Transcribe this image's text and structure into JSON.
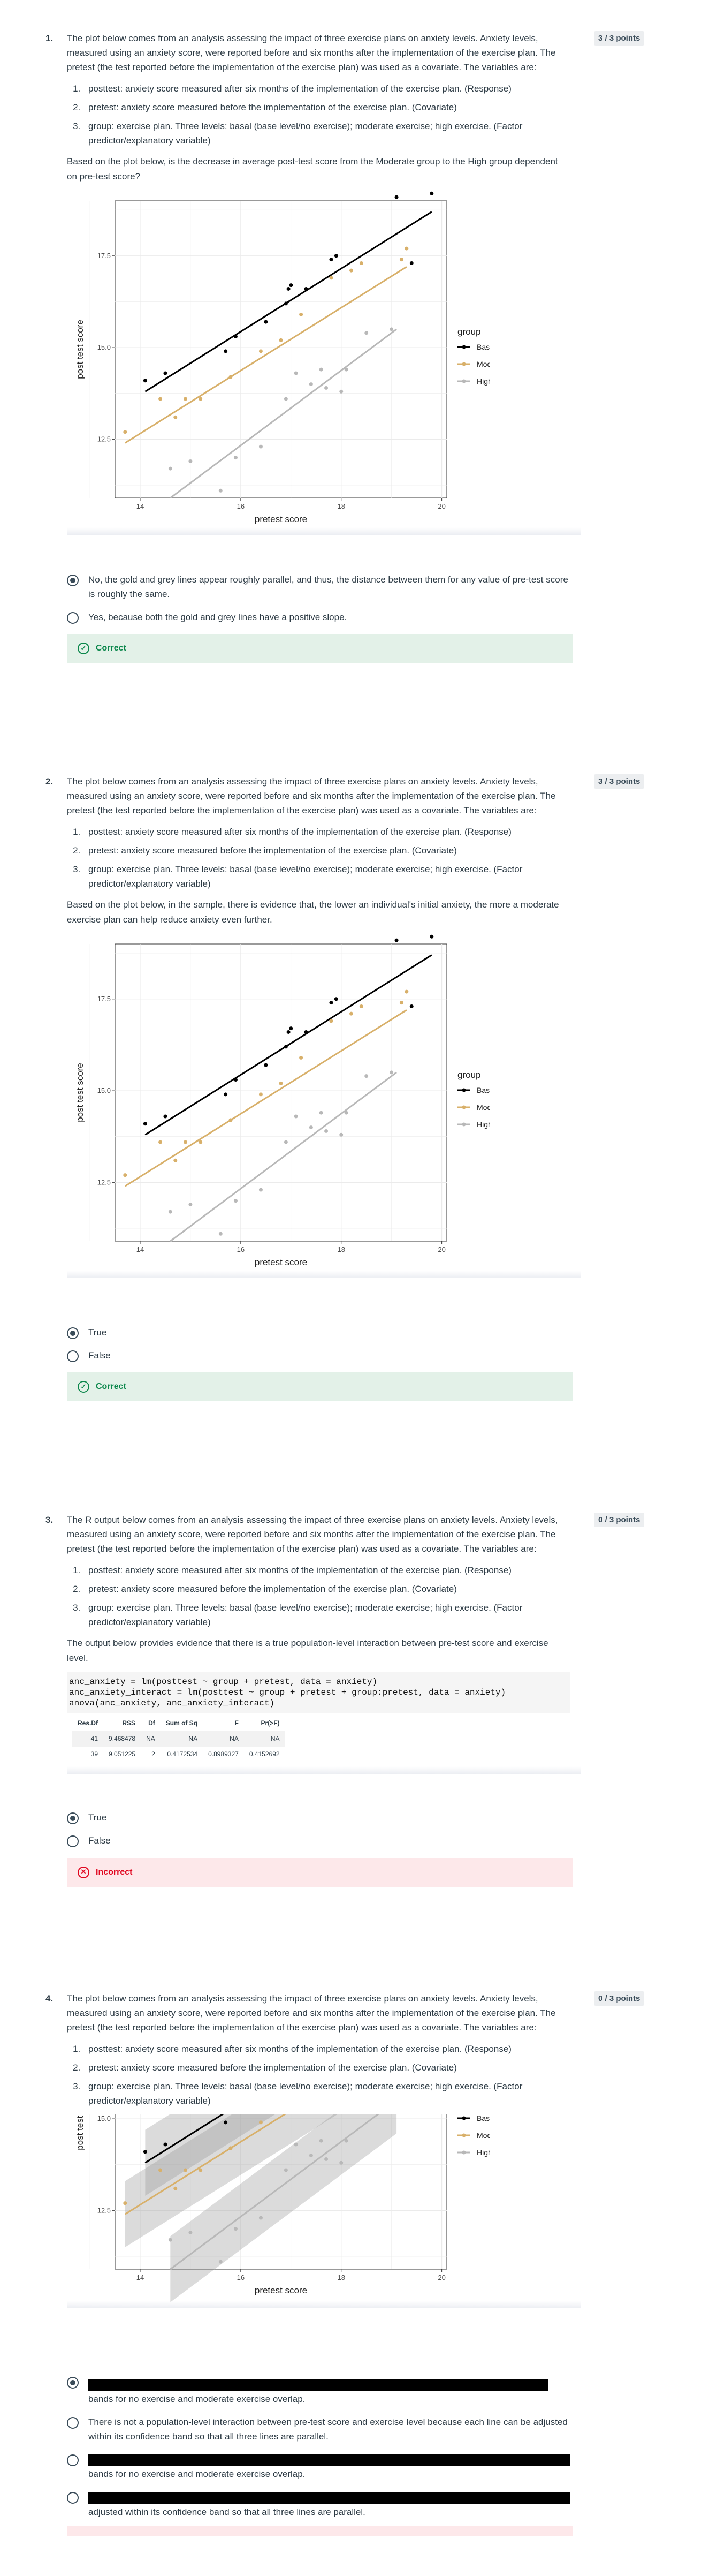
{
  "intro": "The plot below comes from an analysis assessing the impact of three exercise plans on anxiety levels. Anxiety levels, measured using an anxiety score, were reported before and six months after the implementation of the exercise plan. The pretest (the test reported before the implementation of the exercise plan) was used as a covariate.  The variables are:",
  "variables": [
    "posttest: anxiety score measured after six months of the implementation of the exercise plan. (Response)",
    "pretest: anxiety score measured before the implementation of the exercise plan. (Covariate)",
    "group: exercise plan. Three levels: basal (base level/no exercise); moderate exercise; high exercise. (Factor predictor/explanatory variable)"
  ],
  "q1": {
    "number": "1.",
    "points": "3 / 3 points",
    "prompt": "Based on the plot below, is the decrease in average post-test score from the Moderate group to the High group dependent on pre-test score?",
    "answers": [
      "No, the gold and grey lines appear roughly parallel, and thus, the distance between them for any value of pre-test score is roughly the same.",
      "Yes, because both the gold and grey lines have a positive slope."
    ],
    "feedback": "Correct"
  },
  "q2": {
    "number": "2.",
    "points": "3 / 3 points",
    "prompt": "Based on the plot below, in the sample, there is evidence that, the lower an individual's initial anxiety, the more a moderate exercise plan can help reduce anxiety even further.",
    "answers": [
      "True",
      "False"
    ],
    "feedback": "Correct"
  },
  "q3": {
    "number": "3.",
    "points": "0 / 3 points",
    "intro": "The R output below comes from an analysis assessing the impact of three exercise plans on anxiety levels. Anxiety levels, measured using an anxiety score, were reported before and six months after the implementation of the exercise plan. The pretest (the test reported before the implementation of the exercise plan) was used as a covariate.  The variables are:",
    "prompt": "The output below provides evidence that there is a true population-level interaction between pre-test score and exercise level.",
    "code": [
      "anc_anxiety = lm(posttest ~ group + pretest, data = anxiety)",
      "anc_anxiety_interact = lm(posttest ~ group + pretest + group:pretest, data = anxiety)",
      "anova(anc_anxiety, anc_anxiety_interact)"
    ],
    "table": {
      "headers": [
        "Res.Df",
        "RSS",
        "Df",
        "Sum of Sq",
        "F",
        "Pr(>F)"
      ],
      "rows": [
        [
          "41",
          "9.468478",
          "NA",
          "NA",
          "NA",
          "NA"
        ],
        [
          "39",
          "9.051225",
          "2",
          "0.4172534",
          "0.8989327",
          "0.4152692"
        ]
      ]
    },
    "answers": [
      "True",
      "False"
    ],
    "feedback": "Incorrect"
  },
  "q4": {
    "number": "4.",
    "points": "0 / 3 points",
    "answers": [
      "bands for no exercise and moderate exercise overlap.",
      "There is not a population-level interaction between pre-test score and exercise level because each line can be adjusted within its confidence band so that all three lines are parallel.",
      "bands for no exercise and moderate exercise overlap.",
      "adjusted within its confidence band so that all three lines are parallel."
    ]
  },
  "plot": {
    "xlabel": "pretest score",
    "ylabel": "post test score",
    "legend_title": "group",
    "legend": [
      "Basal",
      "Moderate",
      "High"
    ],
    "x_ticks": [
      "14",
      "16",
      "18",
      "20"
    ],
    "y_ticks": [
      "12.5",
      "15.0",
      "17.5"
    ]
  },
  "colors": {
    "basal": "#000000",
    "moderate": "#d8b06a",
    "high": "#b8b8b8",
    "correct": "#0b874b",
    "incorrect": "#e0061f"
  },
  "chart_data": {
    "type": "scatter",
    "xlabel": "pretest score",
    "ylabel": "post test score",
    "xlim": [
      13.5,
      20.1
    ],
    "ylim": [
      10.9,
      19.0
    ],
    "legend_title": "group",
    "series": [
      {
        "name": "Basal",
        "points": [
          [
            14.1,
            14.1
          ],
          [
            14.5,
            14.3
          ],
          [
            15.7,
            14.9
          ],
          [
            15.9,
            15.3
          ],
          [
            16.5,
            15.7
          ],
          [
            16.9,
            16.2
          ],
          [
            16.95,
            16.6
          ],
          [
            17.0,
            16.7
          ],
          [
            17.3,
            16.6
          ],
          [
            17.8,
            17.4
          ],
          [
            17.9,
            17.5
          ],
          [
            19.1,
            19.1
          ],
          [
            19.4,
            17.3
          ],
          [
            19.8,
            19.2
          ]
        ],
        "fit": [
          [
            14.1,
            13.8
          ],
          [
            19.8,
            18.7
          ]
        ]
      },
      {
        "name": "Moderate",
        "points": [
          [
            13.7,
            12.7
          ],
          [
            14.4,
            13.6
          ],
          [
            14.7,
            13.1
          ],
          [
            14.9,
            13.6
          ],
          [
            15.2,
            13.6
          ],
          [
            15.8,
            14.2
          ],
          [
            16.4,
            14.9
          ],
          [
            16.8,
            15.2
          ],
          [
            17.2,
            15.9
          ],
          [
            17.8,
            16.9
          ],
          [
            18.2,
            17.1
          ],
          [
            18.4,
            17.3
          ],
          [
            19.2,
            17.4
          ],
          [
            19.3,
            17.7
          ]
        ],
        "fit": [
          [
            13.7,
            12.4
          ],
          [
            19.3,
            17.2
          ]
        ]
      },
      {
        "name": "High",
        "points": [
          [
            14.6,
            11.7
          ],
          [
            15.0,
            11.9
          ],
          [
            15.6,
            11.1
          ],
          [
            15.9,
            12.0
          ],
          [
            16.4,
            12.3
          ],
          [
            16.9,
            13.6
          ],
          [
            17.1,
            14.3
          ],
          [
            17.4,
            14.0
          ],
          [
            17.6,
            14.4
          ],
          [
            17.7,
            13.9
          ],
          [
            18.0,
            13.8
          ],
          [
            18.1,
            14.4
          ],
          [
            18.5,
            15.4
          ],
          [
            19.0,
            15.5
          ]
        ],
        "fit": [
          [
            14.6,
            10.9
          ],
          [
            19.1,
            15.5
          ]
        ]
      }
    ]
  }
}
